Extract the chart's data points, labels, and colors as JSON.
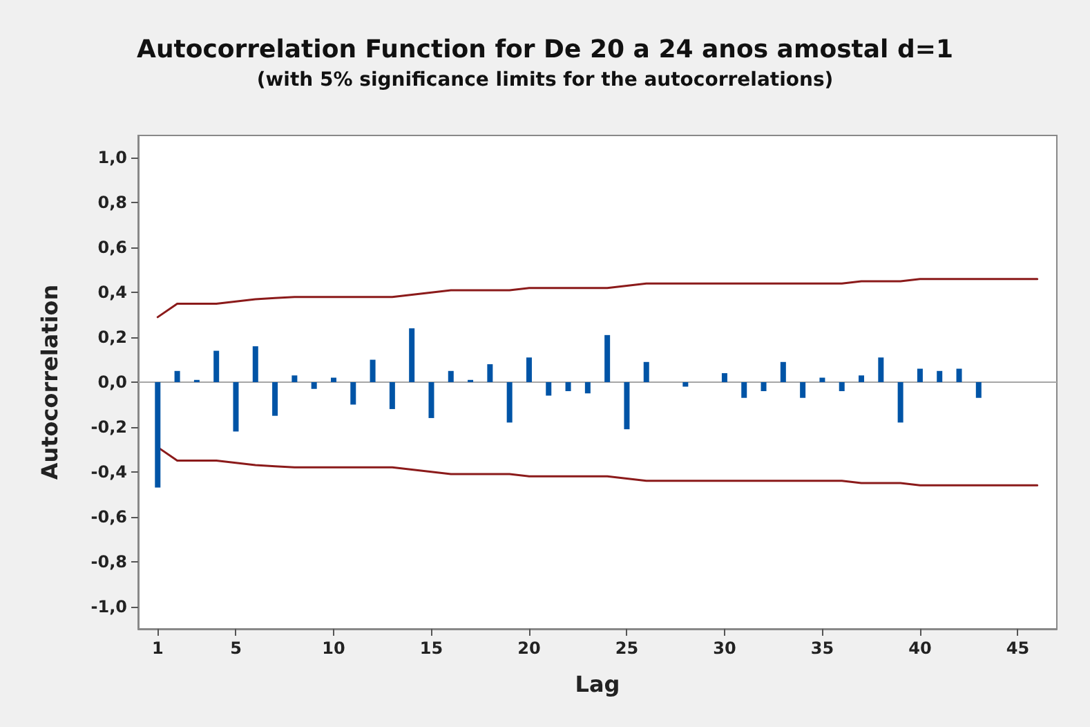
{
  "chart_data": {
    "type": "bar",
    "title": "Autocorrelation Function for De 20 a 24 anos amostal d=1",
    "subtitle": "(with 5% significance limits for the autocorrelations)",
    "xlabel": "Lag",
    "ylabel": "Autocorrelation",
    "x": [
      1,
      2,
      3,
      4,
      5,
      6,
      7,
      8,
      9,
      10,
      11,
      12,
      13,
      14,
      15,
      16,
      17,
      18,
      19,
      20,
      21,
      22,
      23,
      24,
      25,
      26,
      27,
      28,
      29,
      30,
      31,
      32,
      33,
      34,
      35,
      36,
      37,
      38,
      39,
      40,
      41,
      42,
      43
    ],
    "series": [
      {
        "color": "#0054a6",
        "values": [
          -0.47,
          0.05,
          0.01,
          0.14,
          -0.22,
          0.16,
          -0.15,
          0.03,
          -0.03,
          0.02,
          -0.1,
          0.1,
          -0.12,
          0.24,
          -0.16,
          0.05,
          0.01,
          0.08,
          -0.18,
          0.11,
          -0.06,
          -0.04,
          -0.05,
          0.21,
          -0.21,
          0.09,
          0,
          -0.02,
          0,
          0.04,
          -0.07,
          -0.04,
          0.09,
          -0.07,
          0.02,
          -0.04,
          0.03,
          0.11,
          -0.18,
          0.06,
          0.05,
          0.06,
          -0.07
        ]
      },
      {
        "type": "line",
        "color": "#8b1a1a",
        "marker": "none",
        "x": [
          1,
          2,
          3,
          4,
          5,
          6,
          7,
          8,
          9,
          10,
          11,
          12,
          13,
          14,
          15,
          16,
          17,
          18,
          19,
          20,
          21,
          22,
          23,
          24,
          25,
          26,
          27,
          28,
          29,
          30,
          31,
          32,
          33,
          34,
          35,
          36,
          37,
          38,
          39,
          40,
          41,
          42,
          43,
          44,
          45,
          46
        ],
        "values": [
          0.29,
          0.35,
          0.35,
          0.35,
          0.36,
          0.37,
          0.375,
          0.38,
          0.38,
          0.38,
          0.38,
          0.38,
          0.38,
          0.39,
          0.4,
          0.41,
          0.41,
          0.41,
          0.41,
          0.42,
          0.42,
          0.42,
          0.42,
          0.42,
          0.43,
          0.44,
          0.44,
          0.44,
          0.44,
          0.44,
          0.44,
          0.44,
          0.44,
          0.44,
          0.44,
          0.44,
          0.45,
          0.45,
          0.45,
          0.46,
          0.46,
          0.46,
          0.46,
          0.46,
          0.46,
          0.46
        ]
      },
      {
        "type": "line",
        "color": "#8b1a1a",
        "marker": "none",
        "x": [
          1,
          2,
          3,
          4,
          5,
          6,
          7,
          8,
          9,
          10,
          11,
          12,
          13,
          14,
          15,
          16,
          17,
          18,
          19,
          20,
          21,
          22,
          23,
          24,
          25,
          26,
          27,
          28,
          29,
          30,
          31,
          32,
          33,
          34,
          35,
          36,
          37,
          38,
          39,
          40,
          41,
          42,
          43,
          44,
          45,
          46
        ],
        "values": [
          -0.29,
          -0.35,
          -0.35,
          -0.35,
          -0.36,
          -0.37,
          -0.375,
          -0.38,
          -0.38,
          -0.38,
          -0.38,
          -0.38,
          -0.38,
          -0.39,
          -0.4,
          -0.41,
          -0.41,
          -0.41,
          -0.41,
          -0.42,
          -0.42,
          -0.42,
          -0.42,
          -0.42,
          -0.43,
          -0.44,
          -0.44,
          -0.44,
          -0.44,
          -0.44,
          -0.44,
          -0.44,
          -0.44,
          -0.44,
          -0.44,
          -0.44,
          -0.45,
          -0.45,
          -0.45,
          -0.46,
          -0.46,
          -0.46,
          -0.46,
          -0.46,
          -0.46,
          -0.46
        ]
      }
    ],
    "xlim": [
      0,
      47
    ],
    "xticks": [
      1,
      5,
      10,
      15,
      20,
      25,
      30,
      35,
      40,
      45
    ],
    "ylim": [
      -1.1,
      1.1
    ],
    "yticks": [
      {
        "value": -1,
        "label": "-1,0"
      },
      {
        "value": -0.8,
        "label": "-0,8"
      },
      {
        "value": -0.6,
        "label": "-0,6"
      },
      {
        "value": -0.4,
        "label": "-0,4"
      },
      {
        "value": -0.2,
        "label": "-0,2"
      },
      {
        "value": 0,
        "label": "0,0"
      },
      {
        "value": 0.2,
        "label": "0,2"
      },
      {
        "value": 0.4,
        "label": "0,4"
      },
      {
        "value": 0.6,
        "label": "0,6"
      },
      {
        "value": 0.8,
        "label": "0,8"
      },
      {
        "value": 1,
        "label": "1,0"
      }
    ],
    "ref_lines": [
      {
        "axis": "y",
        "value": 0,
        "color": "#a6a6a6"
      }
    ],
    "grid": false
  }
}
